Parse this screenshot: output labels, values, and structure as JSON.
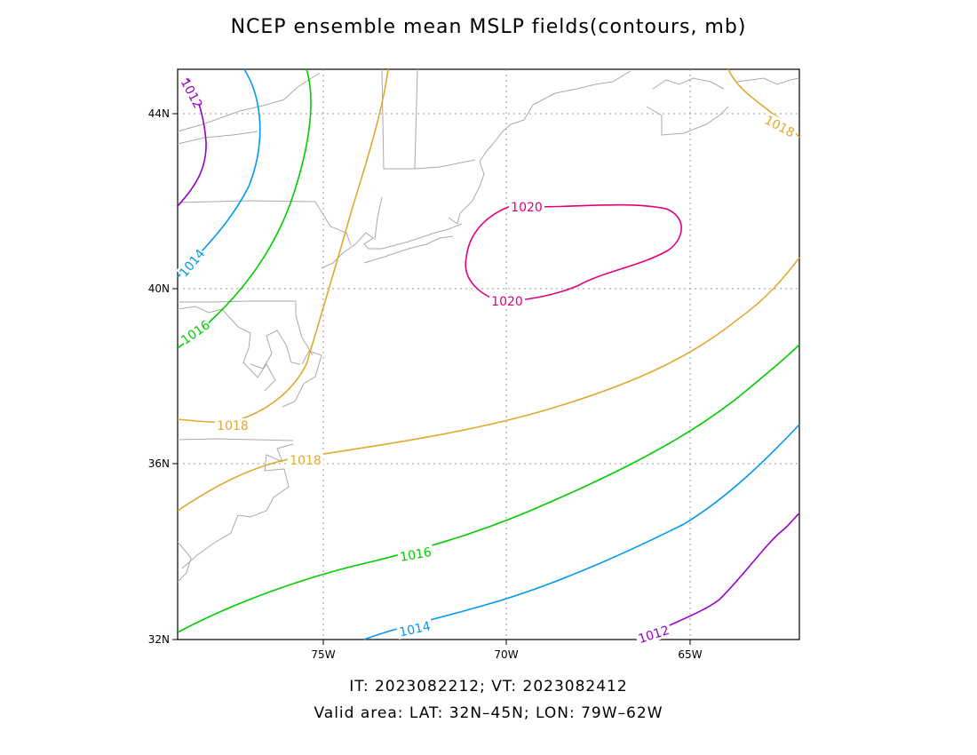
{
  "title": "NCEP ensemble mean MSLP fields(contours, mb)",
  "axes": {
    "x_ticks": [
      "75W",
      "70W",
      "65W"
    ],
    "y_ticks": [
      "44N",
      "40N",
      "36N",
      "32N"
    ]
  },
  "contour_labels": {
    "c1012_nw": "1012",
    "c1014_nw": "1014",
    "c1016_nw": "1016",
    "c1018_w": "1018",
    "c1018_mid": "1018",
    "c1018_ne": "1018",
    "c1020_top": "1020",
    "c1020_bottom": "1020",
    "c1016_s": "1016",
    "c1014_s": "1014",
    "c1012_se": "1012"
  },
  "colors": {
    "c1012": "#9900cc",
    "c1014": "#0099ee",
    "c1016": "#00cc00",
    "c1018": "#e0a830",
    "c1020": "#e0007f",
    "coast": "#aaaaaa",
    "grid": "#999999"
  },
  "footer": {
    "line1": "IT: 2023082212; VT: 2023082412",
    "line2": "Valid area: LAT: 32N–45N; LON: 79W–62W"
  }
}
